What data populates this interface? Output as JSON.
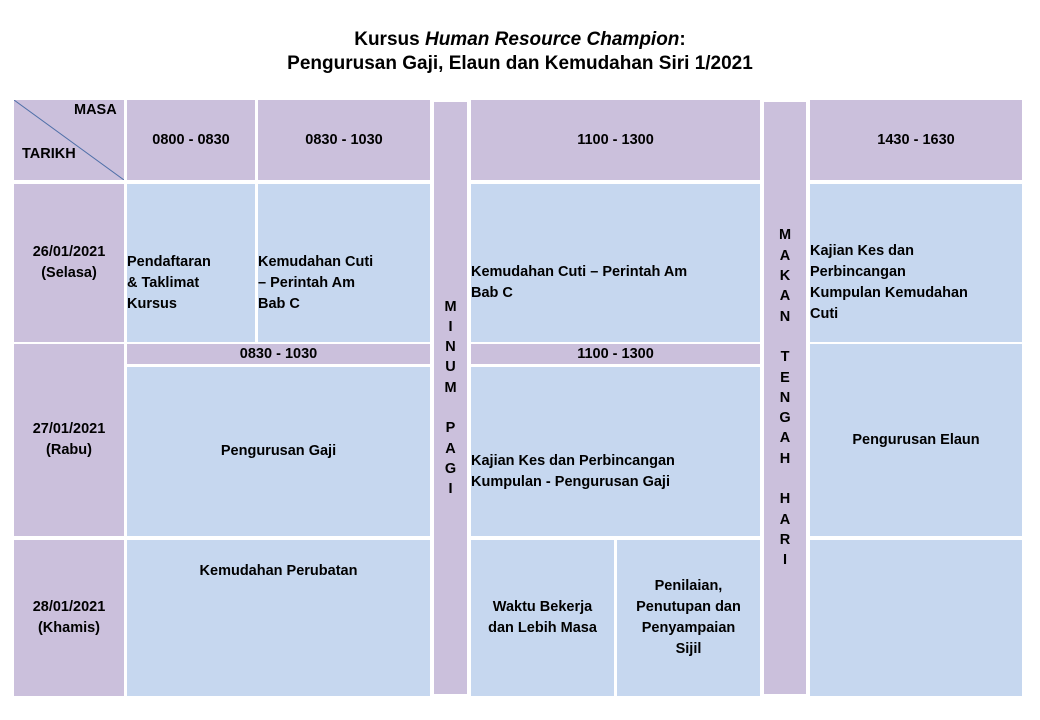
{
  "title": {
    "prefix": "Kursus ",
    "italic": "Human Resource Champion",
    "suffix": ":",
    "line2": "Pengurusan Gaji, Elaun dan Kemudahan Siri 1/2021"
  },
  "header": {
    "masa": "MASA",
    "tarikh": "TARIKH",
    "slot1": "0800  - 0830",
    "slot2": "0830  - 1030",
    "slot3": "1100  - 1300",
    "slot4": "1430  - 1630"
  },
  "days": [
    {
      "date": "26/01/2021",
      "day": "(Selasa)"
    },
    {
      "date": "27/01/2021",
      "day": "(Rabu)"
    },
    {
      "date": "28/01/2021",
      "day": "(Khamis)"
    }
  ],
  "day1": {
    "s1": [
      "Pendaftaran",
      "& Taklimat",
      "Kursus"
    ],
    "s2": [
      "Kemudahan  Cuti",
      "– Perintah  Am",
      "Bab C"
    ],
    "s3": [
      "Kemudahan  Cuti – Perintah Am",
      "Bab C"
    ],
    "s4": [
      "Kajian  Kes dan",
      "Perbincangan",
      "Kumpulan  Kemudahan",
      "Cuti"
    ]
  },
  "day2": {
    "sub_time_a": "0830  - 1030",
    "sub_time_b": "1100  - 1300",
    "s2": "Pengurusan  Gaji",
    "s3": [
      "Kajian  Kes dan Perbincangan",
      "Kumpulan  - Pengurusan  Gaji"
    ],
    "s4": "Pengurusan  Elaun"
  },
  "day3": {
    "s2": "Kemudahan  Perubatan",
    "s3a": [
      "Waktu Bekerja",
      "dan Lebih Masa"
    ],
    "s3b": [
      "Penilaian,",
      "Penutupan  dan",
      "Penyampaian",
      "Sijil"
    ]
  },
  "break_morning": [
    "M",
    "I",
    "N",
    "U",
    "M",
    "",
    "P",
    "A",
    "G",
    "I"
  ],
  "break_lunch": [
    "M",
    "A",
    "K",
    "A",
    "N",
    "",
    "T",
    "E",
    "N",
    "G",
    "A",
    "H",
    "",
    "H",
    "A",
    "R",
    "I"
  ],
  "colors": {
    "lavender": "#cbc0dc",
    "blue": "#c6d7ef",
    "diagonal": "#4f6fa8"
  }
}
